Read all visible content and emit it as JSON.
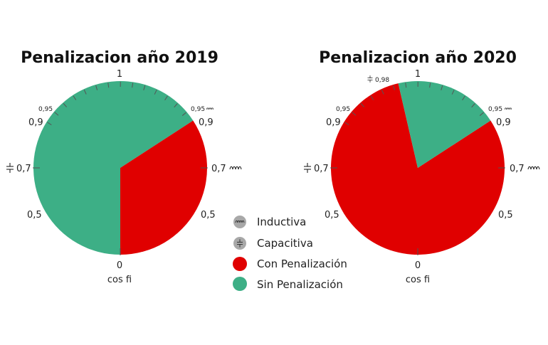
{
  "colors": {
    "con_penalizacion": "#e00000",
    "sin_penalizacion": "#3daf86",
    "legend_gray": "#a8a8a8",
    "tick": "#555555"
  },
  "chart_data": [
    {
      "type": "pie",
      "title": "Penalizacion año 2019",
      "scale_labels": {
        "top": "1",
        "bottom": "0",
        "left_095": "0,95",
        "left_09": "0,9",
        "left_07": "0,7",
        "left_05": "0,5",
        "right_095": "0,95",
        "right_09": "0,9",
        "right_07": "0,7",
        "right_05": "0,5",
        "extra": "",
        "axis_label": "cos fi"
      },
      "slices": [
        {
          "label": "Sin Penalización",
          "color_key": "sin_penalizacion",
          "start_deg": 180,
          "end_deg": 417
        },
        {
          "label": "Con Penalización",
          "color_key": "con_penalizacion",
          "start_deg": 57,
          "end_deg": 180
        }
      ]
    },
    {
      "type": "pie",
      "title": "Penalizacion año 2020",
      "scale_labels": {
        "top": "1",
        "bottom": "0",
        "left_095": "0,95",
        "left_09": "0,9",
        "left_07": "0,7",
        "left_05": "0,5",
        "right_095": "0,95",
        "right_09": "0,9",
        "right_07": "0,7",
        "right_05": "0,5",
        "extra": "0,98",
        "axis_label": "cos fi"
      },
      "slices": [
        {
          "label": "Con Penalización",
          "color_key": "con_penalizacion",
          "start_deg": 57,
          "end_deg": 347
        },
        {
          "label": "Sin Penalización",
          "color_key": "sin_penalizacion",
          "start_deg": 347,
          "end_deg": 417
        }
      ]
    }
  ],
  "legend": [
    {
      "label": "Inductiva",
      "color_key": "legend_gray",
      "icon": "inductive-coil-icon"
    },
    {
      "label": "Capacitiva",
      "color_key": "legend_gray",
      "icon": "capacitor-icon"
    },
    {
      "label": "Con Penalización",
      "color_key": "con_penalizacion",
      "icon": ""
    },
    {
      "label": "Sin Penalización",
      "color_key": "sin_penalizacion",
      "icon": ""
    }
  ]
}
